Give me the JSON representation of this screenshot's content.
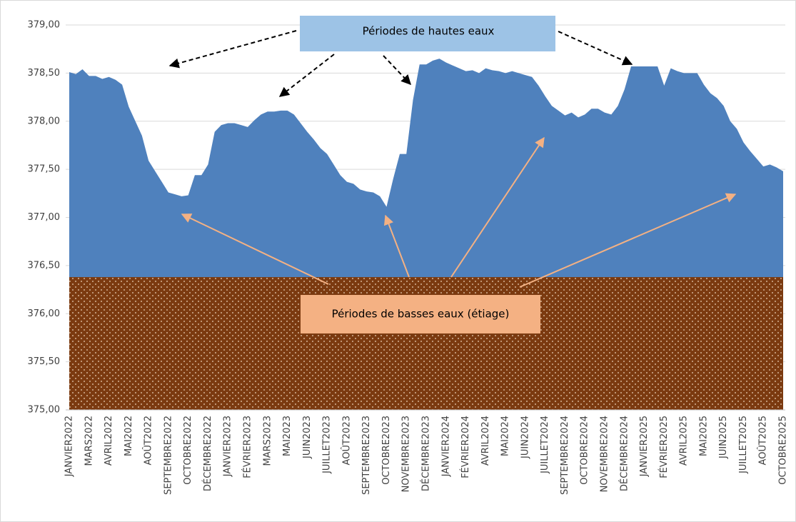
{
  "chart_data": {
    "type": "area",
    "categories": [
      "JANVIER2022",
      null,
      null,
      "MARS2022",
      null,
      null,
      "AVRIL2022",
      null,
      null,
      "MAI2022",
      null,
      null,
      "AOÛT2022",
      null,
      null,
      "SEPTEMBRE2022",
      null,
      null,
      "OCTOBRE2022",
      null,
      null,
      "DÉCEMBRE2022",
      null,
      null,
      "JANVIER2023",
      null,
      null,
      "FÉVRIER2023",
      null,
      null,
      "MARS2023",
      null,
      null,
      "MAI2023",
      null,
      null,
      "JUIN2023",
      null,
      null,
      "JUILLET2023",
      null,
      null,
      "AOÛT2023",
      null,
      null,
      "SEPTEMBRE2023",
      null,
      null,
      "OCTOBRE2023",
      null,
      null,
      "NOVEMBRE2023",
      null,
      null,
      "DÉCEMBRE2023",
      null,
      null,
      "JANVIER2024",
      null,
      null,
      "FÉVRIER2024",
      null,
      null,
      "AVRIL2024",
      null,
      null,
      "MAI2024",
      null,
      null,
      "JUIN2024",
      null,
      null,
      "JUILLET2024",
      null,
      null,
      "SEPTEMBRE2024",
      null,
      null,
      "OCTOBRE2024",
      null,
      null,
      "NOVEMBRE2024",
      null,
      null,
      "DÉCEMBRE2024",
      null,
      null,
      "JANVIER2025",
      null,
      null,
      "FÉVRIER2025",
      null,
      null,
      "AVRIL2025",
      null,
      null,
      "MAI2025",
      null,
      null,
      "JUIN2025",
      null,
      null,
      "JUILLET2025",
      null,
      null,
      "AOÛT2025",
      null,
      null,
      "OCTOBRE2025"
    ],
    "values": [
      378.51,
      378.49,
      378.54,
      378.47,
      378.47,
      378.44,
      378.46,
      378.43,
      378.38,
      378.15,
      378.0,
      377.85,
      377.59,
      377.48,
      377.37,
      377.26,
      377.24,
      377.22,
      377.23,
      377.44,
      377.44,
      377.55,
      377.89,
      377.96,
      377.98,
      377.98,
      377.96,
      377.94,
      378.01,
      378.07,
      378.1,
      378.1,
      378.11,
      378.11,
      378.07,
      377.98,
      377.89,
      377.81,
      377.72,
      377.66,
      377.55,
      377.44,
      377.37,
      377.35,
      377.29,
      377.27,
      377.26,
      377.22,
      377.11,
      377.4,
      377.66,
      377.66,
      378.22,
      378.59,
      378.59,
      378.63,
      378.65,
      378.61,
      378.58,
      378.55,
      378.52,
      378.53,
      378.5,
      378.55,
      378.53,
      378.52,
      378.5,
      378.52,
      378.5,
      378.48,
      378.46,
      378.37,
      378.26,
      378.16,
      378.11,
      378.06,
      378.09,
      378.04,
      378.07,
      378.13,
      378.13,
      378.09,
      378.07,
      378.16,
      378.33,
      378.57,
      378.57,
      378.57,
      378.57,
      378.57,
      378.37,
      378.55,
      378.52,
      378.5,
      378.5,
      378.5,
      378.38,
      378.29,
      378.24,
      378.16,
      378.0,
      377.92,
      377.78,
      377.69,
      377.61,
      377.53,
      377.55,
      377.52,
      377.48
    ],
    "color": "#4f81bd",
    "band": {
      "value": 376.38,
      "color": "#7b3a10"
    },
    "ylim": [
      375,
      379
    ],
    "yticks": [
      {
        "value": 375,
        "label": "375,00"
      },
      {
        "value": 375.5,
        "label": "375,50"
      },
      {
        "value": 376,
        "label": "376,00"
      },
      {
        "value": 376.5,
        "label": "376,50"
      },
      {
        "value": 377,
        "label": "377,00"
      },
      {
        "value": 377.5,
        "label": "377,50"
      },
      {
        "value": 378,
        "label": "378,00"
      },
      {
        "value": 378.5,
        "label": "378,50"
      },
      {
        "value": 379,
        "label": "379,00"
      }
    ],
    "grid": true,
    "annotations": [
      "Périodes de hautes eaux",
      "Périodes de basses eaux (étiage)"
    ]
  }
}
